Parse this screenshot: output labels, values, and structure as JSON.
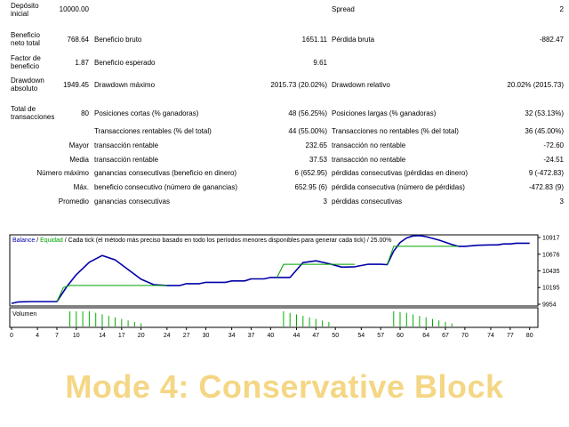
{
  "report": {
    "row1": {
      "deposit_label": "Depósito inicial",
      "deposit_value": "10000.00",
      "spread_label": "Spread",
      "spread_value": "2"
    },
    "row2": {
      "net_label": "Beneficio neto total",
      "net_value": "768.64",
      "gross_profit_label": "Beneficio bruto",
      "gross_profit_value": "1651.11",
      "gross_loss_label": "Pérdida bruta",
      "gross_loss_value": "-882.47"
    },
    "row3": {
      "pf_label": "Factor de beneficio",
      "pf_value": "1.87",
      "expected_label": "Beneficio esperado",
      "expected_value": "9.61"
    },
    "row4": {
      "dd_abs_label": "Drawdown absoluto",
      "dd_abs_value": "1949.45",
      "dd_max_label": "Drawdown máximo",
      "dd_max_value": "2015.73 (20.02%)",
      "dd_rel_label": "Drawdown relativo",
      "dd_rel_value": "20.02% (2015.73)"
    },
    "row5": {
      "total_label": "Total de transacciones",
      "total_value": "80",
      "short_label": "Posiciones cortas (% ganadoras)",
      "short_value": "48 (56.25%)",
      "long_label": "Posiciones largas (% ganadoras)",
      "long_value": "32 (53.13%)"
    },
    "row6": {
      "win_label": "Transacciones rentables (% del total)",
      "win_value": "44 (55.00%)",
      "loss_label": "Transacciones no rentables (% del total)",
      "loss_value": "36 (45.00%)"
    },
    "row7": {
      "prefix": "Mayor",
      "a_label": "transacción rentable",
      "a_value": "232.65",
      "b_label": "transacción no rentable",
      "b_value": "-72.60"
    },
    "row8": {
      "prefix": "Media",
      "a_label": "transacción rentable",
      "a_value": "37.53",
      "b_label": "transacción no rentable",
      "b_value": "-24.51"
    },
    "row9": {
      "prefix": "Número máximo",
      "a_label": "ganancias consecutivas (beneficio en dinero)",
      "a_value": "6 (652.95)",
      "b_label": "pérdidas consecutivas (pérdidas en dinero)",
      "b_value": "9 (-472.83)"
    },
    "row10": {
      "prefix": "Máx.",
      "a_label": "beneficio consecutivo (número de ganancias)",
      "a_value": "652.95 (6)",
      "b_label": "pérdida consecutiva (número de pérdidas)",
      "b_value": "-472.83 (9)"
    },
    "row11": {
      "prefix": "Promedio",
      "a_label": "ganancias consecutivas",
      "a_value": "3",
      "b_label": "pérdidas consecutivas",
      "b_value": "3"
    }
  },
  "chart_data": {
    "type": "line",
    "legend_balance": "Balance",
    "legend_sep": " / ",
    "legend_equity": "Equidad",
    "legend_rest": " / Cada tick (el método más preciso basado en todo los períodos menores disponibles para generar cada tick) / 25.00%",
    "volume_label": "Volumen",
    "colors": {
      "balance": "#0000a8",
      "equity": "#00a000",
      "volume": "#00b000",
      "axis": "#000000"
    },
    "y_ticks": [
      "10917",
      "10676",
      "10435",
      "10195",
      "9954"
    ],
    "y_min": 9954,
    "y_max": 10917,
    "x_ticks": [
      "0",
      "4",
      "7",
      "10",
      "14",
      "17",
      "20",
      "24",
      "27",
      "30",
      "34",
      "37",
      "40",
      "44",
      "47",
      "50",
      "54",
      "57",
      "60",
      "64",
      "67",
      "70",
      "74",
      "77",
      "80"
    ],
    "x_max": 81,
    "series": [
      {
        "name": "Balance",
        "x": [
          0,
          1,
          3,
          7,
          8.5,
          10,
          12,
          14,
          16,
          18,
          20,
          22,
          24,
          26,
          27,
          29,
          30,
          33,
          34,
          36,
          37,
          39,
          40,
          41,
          43,
          45,
          47,
          49,
          51,
          53,
          55,
          57,
          58,
          59,
          60,
          61,
          62,
          63,
          64,
          66,
          68,
          69,
          70,
          72,
          74,
          75,
          76,
          77,
          78,
          80
        ],
        "values": [
          9966,
          9988,
          9992,
          9992,
          10205,
          10380,
          10560,
          10658,
          10595,
          10455,
          10315,
          10235,
          10225,
          10225,
          10250,
          10250,
          10270,
          10270,
          10290,
          10290,
          10320,
          10320,
          10340,
          10340,
          10340,
          10555,
          10580,
          10540,
          10490,
          10495,
          10530,
          10530,
          10525,
          10720,
          10845,
          10910,
          10940,
          10945,
          10930,
          10880,
          10815,
          10790,
          10790,
          10805,
          10810,
          10810,
          10825,
          10825,
          10835,
          10835
        ]
      },
      {
        "name": "Equidad",
        "x": [
          7,
          8,
          9,
          24
        ],
        "values": [
          9992,
          10195,
          10225,
          10225
        ]
      },
      {
        "name": "Equidad",
        "x": [
          41,
          42,
          53
        ],
        "values": [
          10340,
          10530,
          10530
        ]
      },
      {
        "name": "Equidad",
        "x": [
          58,
          59,
          69
        ],
        "values": [
          10525,
          10790,
          10790
        ]
      }
    ],
    "volume": {
      "x": [
        9,
        10,
        11,
        12,
        13,
        14,
        15,
        16,
        17,
        18,
        19,
        20,
        42,
        43,
        44,
        45,
        46,
        47,
        48,
        49,
        59,
        60,
        61,
        62,
        63,
        64,
        65,
        66,
        67,
        68
      ],
      "values": [
        1,
        1,
        1,
        1,
        0.9,
        0.8,
        0.7,
        0.6,
        0.5,
        0.4,
        0.3,
        0.2,
        1,
        0.9,
        0.8,
        0.7,
        0.6,
        0.5,
        0.4,
        0.3,
        1,
        0.95,
        0.9,
        0.8,
        0.7,
        0.6,
        0.5,
        0.4,
        0.3,
        0.2
      ]
    }
  },
  "watermark": "Mode 4: Conservative Block"
}
